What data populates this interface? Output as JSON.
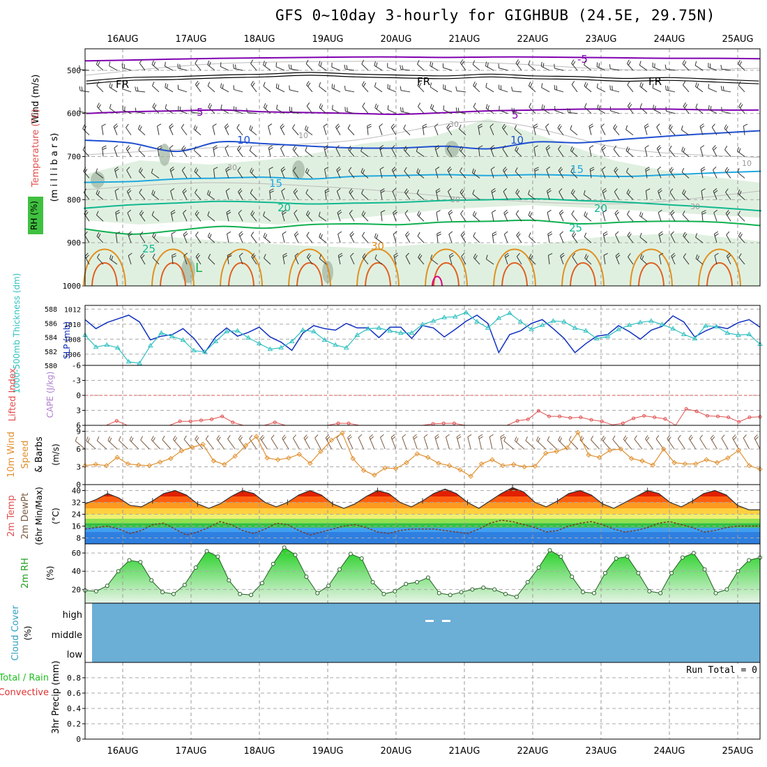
{
  "title": "GFS 0~10day 3-hourly for GIGHBUB (24.5E, 29.75N)",
  "days": [
    "16AUG",
    "17AUG",
    "18AUG",
    "19AUG",
    "20AUG",
    "21AUG",
    "22AUG",
    "23AUG",
    "24AUG",
    "25AUG"
  ],
  "colors": {
    "purple": "#8000b0",
    "blue_dark": "#2050d0",
    "blue_light": "#20a8e0",
    "teal": "#10b890",
    "green": "#10b050",
    "orange": "#e09020",
    "red_orange": "#e06020",
    "magenta": "#e00080",
    "slp": "#1030c0",
    "thick": "#30c0c0",
    "cape": "#e05050",
    "wind": "#e09030",
    "rh_green": "#40d040",
    "cloud": "#6baed6"
  },
  "chart_data": [
    {
      "panel": "upper_air",
      "type": "line",
      "ylabels": [
        "RH (%)",
        "Temperature (°C)",
        "Wind (m/s)",
        "(m i l l i b a r s)"
      ],
      "yticks": [
        500,
        600,
        700,
        800,
        900,
        1000
      ],
      "ylim": [
        450,
        1000
      ],
      "isotherm_labels": [
        "-5",
        "FR",
        "5",
        "10",
        "15",
        "20",
        "25",
        "30"
      ],
      "rh_labels": [
        "10",
        "30"
      ],
      "isotherms": [
        {
          "name": "-5",
          "values": [
            478,
            476,
            474,
            472,
            471,
            470,
            469,
            469,
            470,
            469,
            469,
            470,
            471,
            472,
            472,
            473
          ]
        },
        {
          "name": "FR",
          "values": [
            528,
            520,
            518,
            514,
            512,
            508,
            512,
            514,
            516,
            512,
            516,
            518,
            522,
            520,
            524,
            528
          ]
        },
        {
          "name": "5",
          "values": [
            600,
            596,
            594,
            592,
            596,
            598,
            600,
            602,
            598,
            594,
            592,
            590,
            590,
            590,
            592,
            592
          ]
        },
        {
          "name": "10",
          "values": [
            662,
            668,
            688,
            666,
            670,
            676,
            680,
            680,
            676,
            682,
            666,
            668,
            660,
            652,
            646,
            640
          ]
        },
        {
          "name": "15",
          "values": [
            760,
            758,
            752,
            750,
            748,
            752,
            746,
            744,
            742,
            744,
            742,
            744,
            746,
            742,
            738,
            734
          ]
        },
        {
          "name": "20",
          "values": [
            820,
            812,
            808,
            804,
            806,
            810,
            808,
            806,
            802,
            800,
            798,
            802,
            806,
            812,
            818,
            826
          ]
        },
        {
          "name": "25",
          "values": [
            868,
            880,
            872,
            862,
            866,
            858,
            856,
            858,
            852,
            850,
            848,
            856,
            852,
            850,
            852,
            860
          ]
        }
      ]
    },
    {
      "panel": "slp_thickness",
      "type": "line",
      "ylabel_left": "1000-500mb Thickness (dm)",
      "ylabel_right": "SLP (mb)",
      "yticks_left": [
        "580",
        "582",
        "584",
        "586",
        "588"
      ],
      "yticks_right": [
        "1006",
        "1008",
        "1010",
        "1012"
      ],
      "ylim_left": [
        580,
        588.5
      ],
      "ylim_right": [
        1004.5,
        1012.5
      ],
      "series": [
        {
          "name": "SLP (mb)",
          "values": [
            1010.6,
            1009.4,
            1010.2,
            1010.7,
            1011.2,
            1010.3,
            1007.9,
            1008.4,
            1008.6,
            1009.4,
            1008.1,
            1006.2,
            1008.3,
            1009.5,
            1008.4,
            1008.9,
            1009.6,
            1008.3,
            1007.6,
            1006.5,
            1008.8,
            1009.8,
            1009.4,
            1009.2,
            1010.1,
            1009.5,
            1009.5,
            1008.2,
            1009.6,
            1009.6,
            1008.1,
            1009.8,
            1009.5,
            1008.3,
            1009.3,
            1010.4,
            1011.2,
            1010.1,
            1006.2,
            1008.6,
            1009.1,
            1010.1,
            1010.6,
            1009.4,
            1008.1,
            1006.2,
            1007.4,
            1008.4,
            1008.6,
            1009.8,
            1009.0,
            1008.0,
            1009.2,
            1009.7,
            1011.1,
            1010.3,
            1008.3,
            1009.1,
            1009.7,
            1009.4,
            1010.2,
            1010.6,
            1009.6
          ]
        },
        {
          "name": "1000-500mb Thickness (dm)",
          "values": [
            584.3,
            582.6,
            582.9,
            582.5,
            580.5,
            580.3,
            582.8,
            584.6,
            584.1,
            583.6,
            582.1,
            581.9,
            583.4,
            584.8,
            584.9,
            583.9,
            583.1,
            582.3,
            582.5,
            583.4,
            585.0,
            584.8,
            583.6,
            582.9,
            582.5,
            584.3,
            585.2,
            585.3,
            584.9,
            584.6,
            584.6,
            585.8,
            586.3,
            586.8,
            586.9,
            587.5,
            586.2,
            585.3,
            586.7,
            587.4,
            586.2,
            585.1,
            585.7,
            586.3,
            586.2,
            585.3,
            584.9,
            583.8,
            584.1,
            585.1,
            585.7,
            586.1,
            586.3,
            585.8,
            585.2,
            584.4,
            583.8,
            585.6,
            585.5,
            584.6,
            584.3,
            584.4,
            583.0
          ]
        }
      ]
    },
    {
      "panel": "cape_li",
      "type": "line",
      "ylabel": "Lifted Index",
      "ylabel2": "CAPE (J/kg)",
      "yticks": [
        "-6",
        "-3",
        "0",
        "3",
        "6"
      ],
      "ylim": [
        -6,
        6
      ],
      "series": [
        {
          "name": "Lifted Index",
          "values": [
            6.0,
            6.0,
            6.0,
            5.1,
            6.0,
            6.0,
            6.0,
            6.0,
            6.0,
            5.2,
            5.2,
            5.0,
            4.8,
            4.2,
            5.4,
            6.0,
            6.0,
            6.0,
            5.4,
            6.0,
            6.0,
            6.0,
            6.0,
            6.0,
            5.6,
            5.6,
            6.0,
            6.0,
            6.0,
            6.0,
            6.0,
            6.0,
            6.0,
            5.7,
            5.6,
            5.6,
            6.0,
            6.0,
            6.0,
            6.0,
            6.0,
            5.1,
            4.8,
            3.1,
            4.2,
            4.2,
            4.5,
            4.4,
            4.9,
            5.2,
            5.9,
            5.6,
            4.6,
            4.1,
            4.4,
            4.7,
            6.0,
            2.7,
            3.2,
            4.1,
            4.2,
            4.4,
            5.3,
            4.4,
            4.3
          ]
        }
      ]
    },
    {
      "panel": "wind10m",
      "type": "line",
      "ylabel": "10m Wind Speed & Barbs",
      "yunit": "(m/s)",
      "yticks": [
        "0",
        "3",
        "6",
        "9"
      ],
      "ylim": [
        0,
        10
      ],
      "series": [
        {
          "name": "10m Wind Speed",
          "values": [
            3.2,
            3.4,
            3.2,
            4.6,
            3.5,
            3.3,
            3.2,
            3.8,
            4.4,
            5.7,
            6.3,
            6.8,
            4.0,
            3.4,
            4.8,
            6.6,
            8.1,
            4.5,
            4.2,
            4.5,
            5.1,
            3.6,
            5.6,
            7.5,
            8.7,
            4.4,
            2.4,
            1.6,
            2.8,
            2.7,
            3.7,
            5.2,
            4.6,
            3.6,
            3.2,
            2.5,
            1.4,
            3.5,
            4.2,
            3.2,
            3.4,
            3.0,
            3.1,
            5.3,
            5.6,
            6.2,
            8.8,
            5.0,
            4.6,
            5.8,
            6.0,
            4.4,
            4.0,
            3.3,
            6.0,
            3.7,
            3.5,
            3.5,
            4.2,
            3.7,
            4.5,
            5.8,
            3.2,
            2.6
          ]
        }
      ]
    },
    {
      "panel": "temp2m",
      "type": "area",
      "ylabel": "2m Temp 2m DewPt (6hr Min/Max)",
      "yunit": "(°C)",
      "yticks": [
        "8",
        "16",
        "24",
        "32",
        "40"
      ],
      "ylim": [
        4,
        44
      ],
      "series": [
        {
          "name": "2m Temp",
          "values": [
            31,
            34,
            38,
            35,
            30,
            29,
            33,
            38,
            40,
            37,
            31,
            28,
            31,
            36,
            40,
            38,
            32,
            29,
            32,
            37,
            40,
            37,
            31,
            28,
            31,
            36,
            40,
            38,
            32,
            29,
            33,
            38,
            41,
            38,
            32,
            28,
            33,
            38,
            42,
            39,
            32,
            29,
            33,
            38,
            40,
            37,
            31,
            28,
            32,
            36,
            40,
            38,
            32,
            29,
            33,
            38,
            40,
            37,
            30,
            27,
            27
          ]
        },
        {
          "name": "2m DewPt",
          "values": [
            14,
            15,
            16,
            14,
            11,
            13,
            17,
            18,
            14,
            10,
            12,
            15,
            19,
            17,
            13,
            11,
            14,
            18,
            17,
            13,
            10,
            12,
            14,
            16,
            17,
            15,
            12,
            11,
            13,
            14,
            14,
            14,
            13,
            12,
            11,
            14,
            18,
            20,
            19,
            17,
            15,
            12,
            13,
            16,
            18,
            19,
            17,
            14,
            12,
            13,
            15,
            18,
            19,
            17,
            15,
            12,
            13,
            15,
            16,
            16,
            16
          ]
        }
      ]
    },
    {
      "panel": "rh2m",
      "type": "area",
      "ylabel": "2m RH",
      "yunit": "(%)",
      "yticks": [
        "20",
        "40",
        "60"
      ],
      "ylim": [
        5,
        70
      ],
      "series": [
        {
          "name": "2m RH",
          "values": [
            19,
            18,
            24,
            40,
            52,
            50,
            30,
            17,
            15,
            25,
            44,
            62,
            56,
            30,
            15,
            14,
            27,
            48,
            66,
            58,
            34,
            16,
            24,
            42,
            59,
            54,
            28,
            15,
            18,
            26,
            28,
            33,
            16,
            14,
            17,
            20,
            22,
            20,
            15,
            12,
            28,
            44,
            63,
            56,
            34,
            17,
            16,
            38,
            54,
            56,
            38,
            18,
            16,
            38,
            55,
            60,
            42,
            16,
            20,
            40,
            52,
            55
          ]
        }
      ]
    },
    {
      "panel": "cloud",
      "type": "area",
      "ylabel": "Cloud Cover",
      "yunit": "(%)",
      "levels": [
        "high",
        "middle",
        "low"
      ]
    },
    {
      "panel": "precip",
      "type": "bar",
      "ylabel_left": "Total / Rain",
      "ylabel_left2": "Convective",
      "ylabel": "3hr Precip (mm)",
      "yticks": [
        "0",
        "0.2",
        "0.4",
        "0.6",
        "0.8"
      ],
      "ylim": [
        0,
        1
      ],
      "run_total": "Run Total = 0",
      "values": []
    }
  ]
}
